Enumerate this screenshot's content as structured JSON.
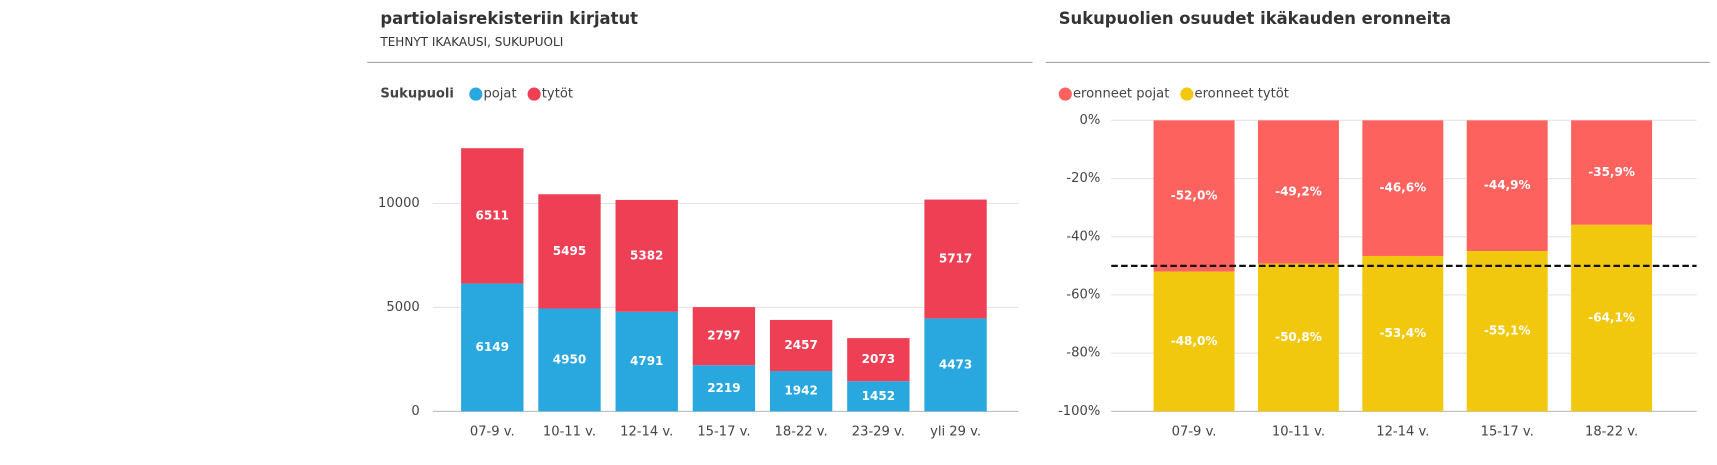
{
  "chart_data": [
    {
      "type": "stacked-bar",
      "title": "partiolaisrekisteriin kirjatut",
      "subtitle": "TEHNYT IKAKAUSI, SUKUPUOLI",
      "legend_title": "Sukupuoli",
      "categories": [
        "07-9 v.",
        "10-11 v.",
        "12-14 v.",
        "15-17 v.",
        "18-22 v.",
        "23-29 v.",
        "yli 29 v."
      ],
      "series": [
        {
          "name": "pojat",
          "color": "#29a8e0",
          "values": [
            6149,
            4950,
            4791,
            2219,
            1942,
            1452,
            4473
          ]
        },
        {
          "name": "tytöt",
          "color": "#ee3f55",
          "values": [
            6511,
            5495,
            5382,
            2797,
            2457,
            2073,
            5717
          ]
        }
      ],
      "ylim": [
        0,
        14000
      ],
      "yticks": [
        0,
        5000,
        10000
      ],
      "grid": true
    },
    {
      "type": "stacked-bar",
      "title": "Sukupuolien osuudet ikäkauden eronneita",
      "categories": [
        "07-9 v.",
        "10-11 v.",
        "12-14 v.",
        "15-17 v.",
        "18-22 v."
      ],
      "series": [
        {
          "name": "eronneet pojat",
          "color": "#fd625e",
          "values": [
            -52.0,
            -49.2,
            -46.6,
            -44.9,
            -35.9
          ],
          "value_labels": [
            "-52,0%",
            "-49,2%",
            "-46,6%",
            "-44,9%",
            "-35,9%"
          ]
        },
        {
          "name": "eronneet tytöt",
          "color": "#f2c80f",
          "values": [
            -48.0,
            -50.8,
            -53.4,
            -55.1,
            -64.1
          ],
          "value_labels": [
            "-48,0%",
            "-50,8%",
            "-53,4%",
            "-55,1%",
            "-64,1%"
          ]
        }
      ],
      "ylim": [
        -100,
        0
      ],
      "yticks": [
        {
          "value": 0,
          "label": "0%"
        },
        {
          "value": -20,
          "label": "-20%"
        },
        {
          "value": -40,
          "label": "-40%"
        },
        {
          "value": -60,
          "label": "-60%"
        },
        {
          "value": -80,
          "label": "-80%"
        },
        {
          "value": -100,
          "label": "-100%"
        }
      ],
      "reference_line": -50,
      "grid": true
    }
  ]
}
